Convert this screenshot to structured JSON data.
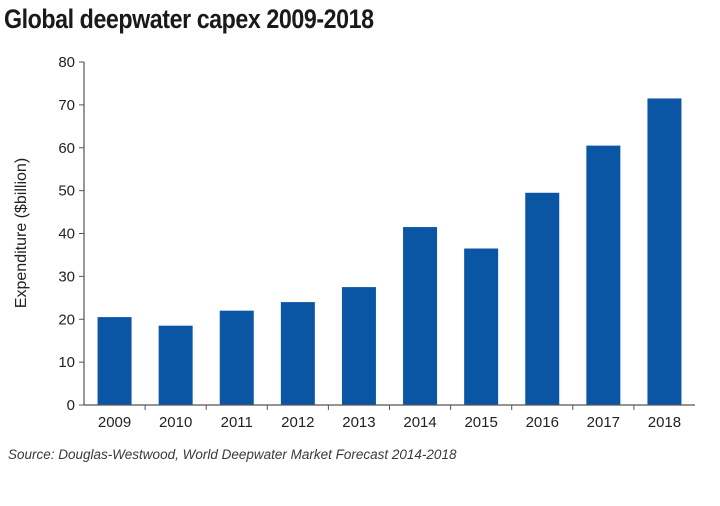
{
  "colors": {
    "bar": "#0b56a4",
    "axis": "#555555",
    "text": "#222222"
  },
  "chart_data": {
    "type": "bar",
    "title": "Global deepwater capex 2009-2018",
    "xlabel": "",
    "ylabel": "Expenditure ($billion)",
    "categories": [
      "2009",
      "2010",
      "2011",
      "2012",
      "2013",
      "2014",
      "2015",
      "2016",
      "2017",
      "2018"
    ],
    "values": [
      20.5,
      18.5,
      22,
      24,
      27.5,
      41.5,
      36.5,
      49.5,
      60.5,
      71.5
    ],
    "ylim": [
      0,
      80
    ],
    "yticks": [
      "0",
      "10",
      "20",
      "30",
      "40",
      "50",
      "60",
      "70",
      "80"
    ],
    "grid": false,
    "legend": "none",
    "source": "Source: Douglas-Westwood, World Deepwater Market Forecast 2014-2018"
  }
}
